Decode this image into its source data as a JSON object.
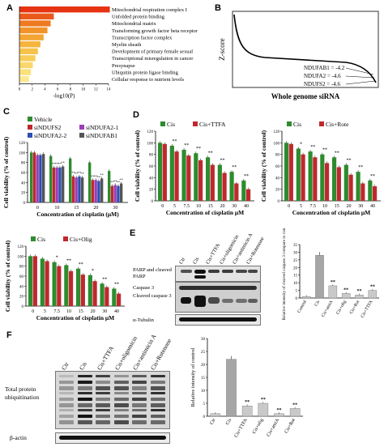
{
  "panels": {
    "a": {
      "letter": "A",
      "axis_label": "-log10(P)",
      "ticks": [
        "0",
        "2",
        "4",
        "6",
        "8",
        "10",
        "12",
        "14"
      ],
      "terms": [
        {
          "label": "Mitochondrial respiration complex I",
          "value": 14.2,
          "color": "#e63312"
        },
        {
          "label": "Unfolded protein binding",
          "value": 5.4,
          "color": "#ea5a1c"
        },
        {
          "label": "Mitochondrial matrix",
          "value": 4.9,
          "color": "#ee7a22"
        },
        {
          "label": "Transforming growth factor beta receptor",
          "value": 4.4,
          "color": "#f1932a"
        },
        {
          "label": "Transcription factor complex",
          "value": 3.8,
          "color": "#f3a533"
        },
        {
          "label": "Myelin sheath",
          "value": 3.3,
          "color": "#f5b53e"
        },
        {
          "label": "Development of primary female sexual",
          "value": 2.9,
          "color": "#f7c24b"
        },
        {
          "label": "Transcriptional misregulation in cancer",
          "value": 2.5,
          "color": "#f8cd5a"
        },
        {
          "label": "Presynapse",
          "value": 2.1,
          "color": "#fad76b"
        },
        {
          "label": "Ubiquitin protein ligase binding",
          "value": 1.8,
          "color": "#fbe07d"
        },
        {
          "label": "Cellular response to nutrient levels",
          "value": 1.5,
          "color": "#fce890"
        }
      ]
    },
    "b": {
      "letter": "B",
      "ylabel": "Z-score",
      "xlabel": "Whole genome siRNA",
      "annotations": [
        "NDUFAB1 = -4.2",
        "NDUFA2 = -4.6",
        "NDUFS2 = -4.6"
      ]
    },
    "c": {
      "letter": "C",
      "ylabel": "Cell viability (% of control)",
      "xlabel": "Concentration of cisplatin (μM)",
      "legend": [
        {
          "name": "Vehicle",
          "color": "#2e8b2e"
        },
        {
          "name": "siNDUFS2",
          "color": "#c0282d"
        },
        {
          "name": "siNDUFA2-1",
          "color": "#9b3fb5"
        },
        {
          "name": "siNDUFA2-2",
          "color": "#2b4fb3"
        },
        {
          "name": "siNDUFAB1",
          "color": "#555555"
        }
      ],
      "chart_data": {
        "type": "bar",
        "categories": [
          "0",
          "10",
          "15",
          "20",
          "30"
        ],
        "ylim": [
          0,
          120
        ],
        "yticks": [
          "0",
          "20",
          "40",
          "60",
          "80",
          "100",
          "120"
        ],
        "series": [
          {
            "name": "Vehicle",
            "values": [
              100,
              93,
              88,
              80,
              63
            ]
          },
          {
            "name": "siNDUFS2",
            "values": [
              100,
              70,
              52,
              45,
              33
            ]
          },
          {
            "name": "siNDUFA2-1",
            "values": [
              95,
              70,
              50,
              45,
              35
            ]
          },
          {
            "name": "siNDUFA2-2",
            "values": [
              95,
              70,
              52,
              43,
              33
            ]
          },
          {
            "name": "siNDUFAB1",
            "values": [
              97,
              72,
              50,
              48,
              38
            ]
          }
        ],
        "sig": "**"
      }
    },
    "d1": {
      "letter": "D",
      "ylabel": "Cell viability (% of control)",
      "xlabel": "Concentration of cisplatin μM",
      "legend": [
        {
          "name": "Cis",
          "color": "#2e8b2e"
        },
        {
          "name": "Cis+TTFA",
          "color": "#c0282d"
        }
      ],
      "chart_data": {
        "type": "bar",
        "categories": [
          "0",
          "5",
          "7.5",
          "10",
          "15",
          "20",
          "30",
          "40"
        ],
        "ylim": [
          0,
          120
        ],
        "yticks": [
          "0",
          "20",
          "40",
          "60",
          "80",
          "100",
          "120"
        ],
        "series": [
          {
            "name": "Cis",
            "values": [
              100,
              95,
              88,
              82,
              75,
              62,
              50,
              35
            ]
          },
          {
            "name": "Cis+TTFA",
            "values": [
              98,
              85,
              78,
              70,
              62,
              48,
              30,
              20
            ]
          }
        ],
        "sig": [
          "",
          "**",
          "**",
          "**",
          "**",
          "**",
          "**",
          "**"
        ]
      }
    },
    "d2": {
      "ylabel": "Cell viability (% of control)",
      "xlabel": "Concentration of cisplatin μM",
      "legend": [
        {
          "name": "Cis",
          "color": "#2e8b2e"
        },
        {
          "name": "Cis+Rote",
          "color": "#c0282d"
        }
      ],
      "chart_data": {
        "type": "bar",
        "categories": [
          "0",
          "5",
          "7.5",
          "10",
          "15",
          "20",
          "30",
          "40"
        ],
        "ylim": [
          0,
          120
        ],
        "yticks": [
          "0",
          "20",
          "40",
          "60",
          "80",
          "100",
          "120"
        ],
        "series": [
          {
            "name": "Cis",
            "values": [
              100,
              90,
              85,
              80,
              75,
              62,
              50,
              35
            ]
          },
          {
            "name": "Cis+Rote",
            "values": [
              98,
              80,
              75,
              65,
              58,
              45,
              30,
              25
            ]
          }
        ],
        "sig": [
          "",
          "*",
          "**",
          "**",
          "**",
          "**",
          "**",
          "**"
        ]
      }
    },
    "d3": {
      "ylabel": "Cell viability (% of control)",
      "xlabel": "Concentration of cisplatin μM",
      "legend": [
        {
          "name": "Cis",
          "color": "#2e8b2e"
        },
        {
          "name": "Cis+Olig",
          "color": "#c0282d"
        }
      ],
      "chart_data": {
        "type": "bar",
        "categories": [
          "0",
          "5",
          "7.5",
          "10",
          "15",
          "20",
          "30",
          "40"
        ],
        "ylim": [
          0,
          120
        ],
        "yticks": [
          "0",
          "20",
          "40",
          "60",
          "80",
          "100",
          "120"
        ],
        "series": [
          {
            "name": "Cis",
            "values": [
              100,
              95,
              88,
              82,
              75,
              62,
              45,
              35
            ]
          },
          {
            "name": "Cis+Olig",
            "values": [
              100,
              90,
              80,
              70,
              63,
              50,
              38,
              25
            ]
          }
        ],
        "sig": [
          "",
          "",
          "*",
          "**",
          "**",
          "*",
          "**",
          "**"
        ]
      }
    },
    "e": {
      "letter": "E",
      "lanes": [
        "Ctr",
        "Cis",
        "Cis+TTFA",
        "Cis+oligomicin",
        "Cis+antimicin A",
        "Cis+Rotenone"
      ],
      "blot_labels": [
        "PARP and cleaved PARP",
        "Caspase 3",
        "Cleaved caspase 3",
        "α-Tubulin"
      ],
      "ylabel": "Relative intensity of cleaved caspase 3 compare to control",
      "chart_data": {
        "type": "bar",
        "categories": [
          "Control",
          "Cis",
          "Cis+amiA",
          "Cis+olig",
          "Cis+Rot",
          "Cis+TTFA"
        ],
        "values": [
          1,
          28,
          8,
          3,
          2,
          5
        ],
        "ylim": [
          0,
          35
        ],
        "yticks": [
          "0",
          "5",
          "10",
          "15",
          "20",
          "25",
          "30",
          "35"
        ],
        "sig": [
          "",
          "",
          "**",
          "**",
          "**",
          "**"
        ]
      }
    },
    "f": {
      "letter": "F",
      "lanes": [
        "Ctr",
        "Cis",
        "Cis+TTFA",
        "Cis+oligomicin",
        "Cis+antimicin A",
        "Cis+Rotenone"
      ],
      "blot_labels": [
        "Total protein ubiquitination",
        "β-actin"
      ],
      "ylabel": "Relative intensity of control",
      "chart_data": {
        "type": "bar",
        "categories": [
          "Ctr",
          "Cis",
          "Cis+TTFA",
          "Cis+olig",
          "Cis+amiA",
          "Cis+Rot"
        ],
        "values": [
          1,
          22,
          4,
          5,
          1,
          3
        ],
        "ylim": [
          0,
          30
        ],
        "yticks": [
          "0",
          "5",
          "10",
          "15",
          "20",
          "25",
          "30"
        ],
        "sig": [
          "",
          "",
          "**",
          "**",
          "**",
          "**"
        ]
      }
    }
  }
}
